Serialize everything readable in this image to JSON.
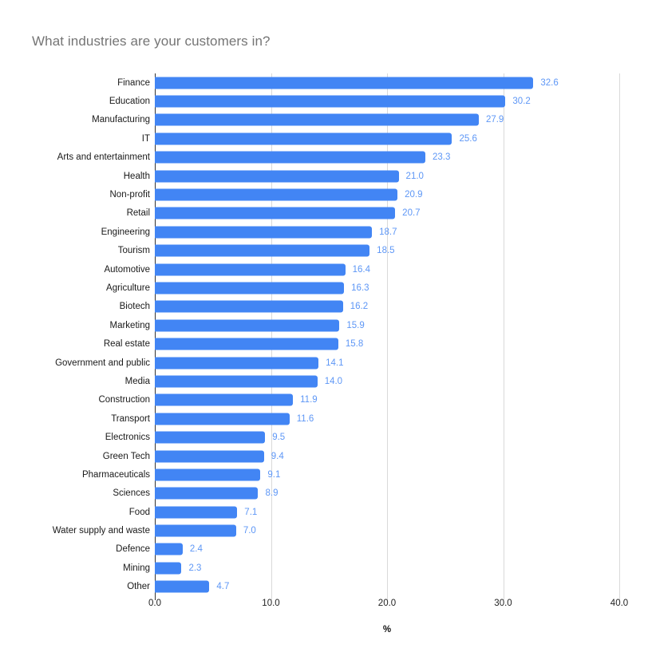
{
  "chart_data": {
    "type": "bar",
    "orientation": "horizontal",
    "title": "What industries are your customers in?",
    "xlabel": "%",
    "ylabel": "",
    "xlim": [
      0,
      40
    ],
    "x_ticks": [
      "0.0",
      "10.0",
      "20.0",
      "30.0",
      "40.0"
    ],
    "grid": "vertical-gridlines-on",
    "legend": "none",
    "value_label_decimals": 1,
    "categories": [
      "Finance",
      "Education",
      "Manufacturing",
      "IT",
      "Arts and entertainment",
      "Health",
      "Non-profit",
      "Retail",
      "Engineering",
      "Tourism",
      "Automotive",
      "Agriculture",
      "Biotech",
      "Marketing",
      "Real estate",
      "Government and public",
      "Media",
      "Construction",
      "Transport",
      "Electronics",
      "Green Tech",
      "Pharmaceuticals",
      "Sciences",
      "Food",
      "Water supply and waste",
      "Defence",
      "Mining",
      "Other"
    ],
    "values": [
      32.6,
      30.2,
      27.9,
      25.6,
      23.3,
      21.0,
      20.9,
      20.7,
      18.7,
      18.5,
      16.4,
      16.3,
      16.2,
      15.9,
      15.8,
      14.1,
      14.0,
      11.9,
      11.6,
      9.5,
      9.4,
      9.1,
      8.9,
      7.1,
      7.0,
      2.4,
      2.3,
      4.7
    ],
    "colors": {
      "bar": "#4285f4",
      "value_label": "#5e97f6",
      "title": "#757575",
      "category_label": "#1a1a1a",
      "tick_label": "#222222",
      "gridline": "#d9d9d9",
      "axis_line": "#333333"
    }
  }
}
